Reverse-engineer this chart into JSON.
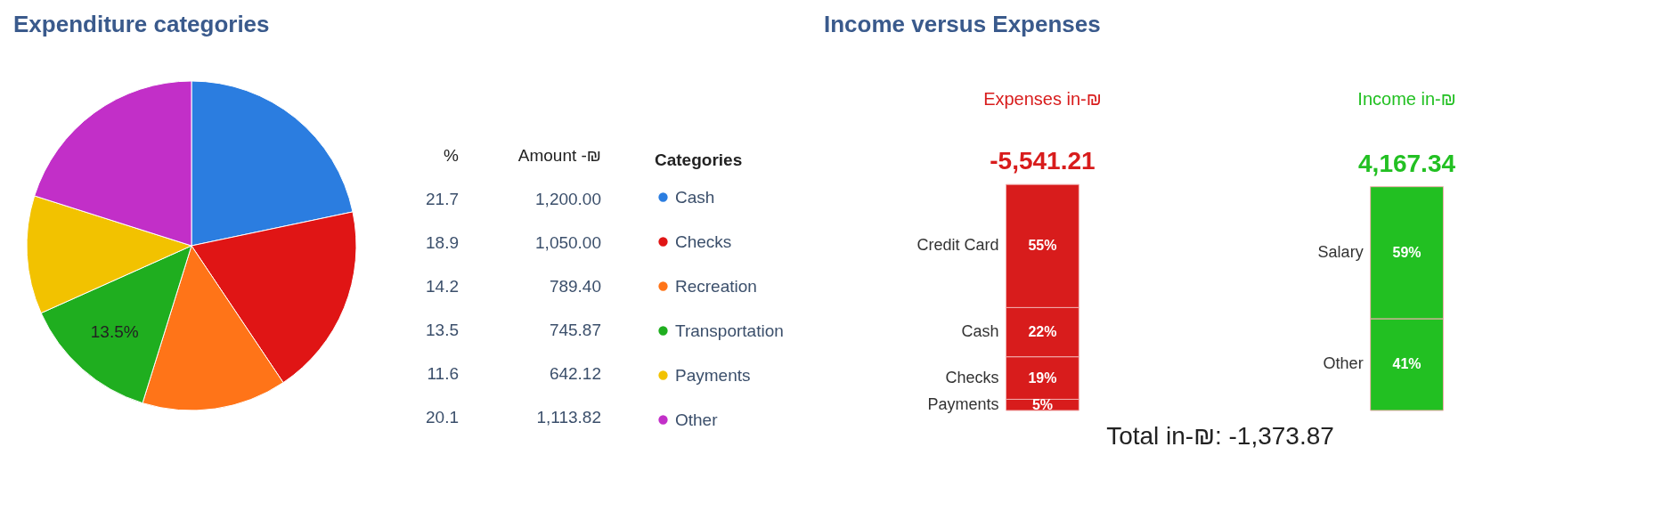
{
  "chart_data": [
    {
      "type": "pie",
      "title": "Expenditure categories",
      "categories": [
        "Cash",
        "Checks",
        "Recreation",
        "Transportation",
        "Payments",
        "Other"
      ],
      "values": [
        21.7,
        18.9,
        14.2,
        13.5,
        11.6,
        20.1
      ],
      "colors": [
        "#2b7de0",
        "#e01515",
        "#ff7418",
        "#1fae1f",
        "#f2c200",
        "#c22fc8"
      ],
      "value_labels": [
        null,
        null,
        null,
        "13.5%",
        null,
        null
      ],
      "legend": "right",
      "legend_title": "Categories"
    },
    {
      "type": "other",
      "annotations": [
        "%",
        "Amount -₪",
        "21.7",
        "1,200.00",
        "18.9",
        "1,050.00",
        "14.2",
        "789.40",
        "13.5",
        "745.87",
        "11.6",
        "642.12",
        "20.1",
        "1,113.82"
      ]
    },
    {
      "type": "bar",
      "title": "Income versus Expenses",
      "stacked": true,
      "categories": [
        "Expenses in-₪",
        "Income in-₪"
      ],
      "annotations": [
        "-5,541.21",
        "4,167.34",
        "Total in-₪: -1,373.87"
      ],
      "series": [
        {
          "name": "Payments",
          "color": "#d81c1c",
          "values": [
            5,
            null
          ],
          "value_labels": [
            "5%",
            null
          ]
        },
        {
          "name": "Checks",
          "color": "#d81c1c",
          "values": [
            19,
            null
          ],
          "value_labels": [
            "19%",
            null
          ]
        },
        {
          "name": "Cash",
          "color": "#d81c1c",
          "values": [
            22,
            null
          ],
          "value_labels": [
            "22%",
            null
          ]
        },
        {
          "name": "Credit Card",
          "color": "#d81c1c",
          "values": [
            55,
            null
          ],
          "value_labels": [
            "55%",
            null
          ]
        },
        {
          "name": "Other",
          "color": "#22c022",
          "values": [
            null,
            41
          ],
          "value_labels": [
            null,
            "41%"
          ]
        },
        {
          "name": "Salary",
          "color": "#22c022",
          "values": [
            null,
            59
          ],
          "value_labels": [
            null,
            "59%"
          ]
        }
      ]
    }
  ]
}
